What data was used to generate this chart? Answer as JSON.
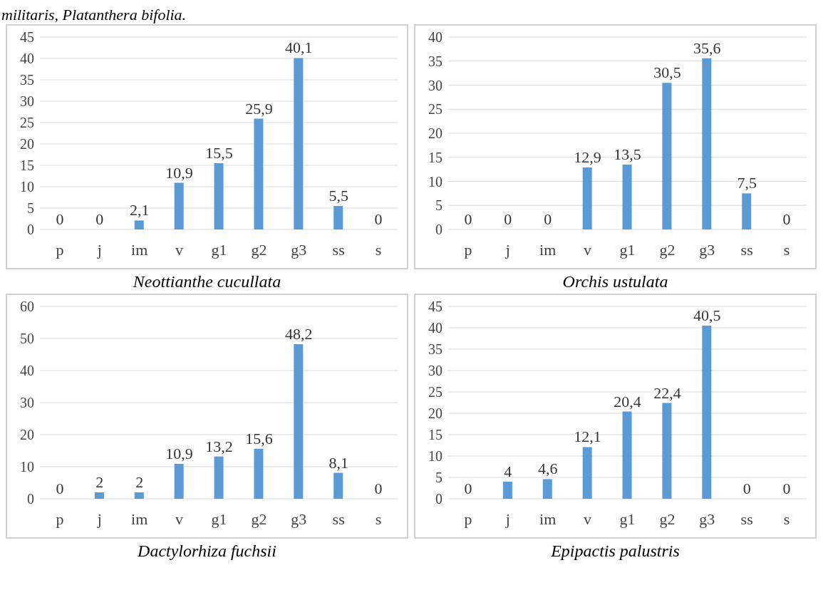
{
  "chart_data": [
    {
      "type": "bar",
      "annotations": [
        "militaris, Platanthera bifolia."
      ],
      "xlabel": "Neottianthe cucullata",
      "categories": [
        "p",
        "j",
        "im",
        "v",
        "g1",
        "g2",
        "g3",
        "ss",
        "s"
      ],
      "values": [
        0,
        0,
        2.1,
        10.9,
        15.5,
        25.9,
        40.1,
        5.5,
        0
      ],
      "value_labels": [
        "0",
        "0",
        "2,1",
        "10,9",
        "15,5",
        "25,9",
        "40,1",
        "5,5",
        "0"
      ],
      "color": "#5b9bd5",
      "ylim": [
        0,
        45
      ],
      "yticks": [
        0,
        5,
        10,
        15,
        20,
        25,
        30,
        35,
        40,
        45
      ],
      "grid": "y"
    },
    {
      "type": "bar",
      "xlabel": "Orchis ustulata",
      "categories": [
        "p",
        "j",
        "im",
        "v",
        "g1",
        "g2",
        "g3",
        "ss",
        "s"
      ],
      "values": [
        0,
        0,
        0,
        12.9,
        13.5,
        30.5,
        35.6,
        7.5,
        0
      ],
      "value_labels": [
        "0",
        "0",
        "0",
        "12,9",
        "13,5",
        "30,5",
        "35,6",
        "7,5",
        "0"
      ],
      "color": "#5b9bd5",
      "ylim": [
        0,
        40
      ],
      "yticks": [
        0,
        5,
        10,
        15,
        20,
        25,
        30,
        35,
        40
      ],
      "grid": "y"
    },
    {
      "type": "bar",
      "xlabel": "Dactylorhiza fuchsii",
      "categories": [
        "p",
        "j",
        "im",
        "v",
        "g1",
        "g2",
        "g3",
        "ss",
        "s"
      ],
      "values": [
        0,
        2,
        2,
        10.9,
        13.2,
        15.6,
        48.2,
        8.1,
        0
      ],
      "value_labels": [
        "0",
        "2",
        "2",
        "10,9",
        "13,2",
        "15,6",
        "48,2",
        "8,1",
        "0"
      ],
      "color": "#5b9bd5",
      "ylim": [
        0,
        60
      ],
      "yticks": [
        0,
        10,
        20,
        30,
        40,
        50,
        60
      ],
      "grid": "y"
    },
    {
      "type": "bar",
      "xlabel": "Epipactis palustris",
      "categories": [
        "p",
        "j",
        "im",
        "v",
        "g1",
        "g2",
        "g3",
        "ss",
        "s"
      ],
      "values": [
        0,
        4,
        4.6,
        12.1,
        20.4,
        22.4,
        40.5,
        0,
        0
      ],
      "value_labels": [
        "0",
        "4",
        "4,6",
        "12,1",
        "20,4",
        "22,4",
        "40,5",
        "0",
        "0"
      ],
      "color": "#5b9bd5",
      "ylim": [
        0,
        45
      ],
      "yticks": [
        0,
        5,
        10,
        15,
        20,
        25,
        30,
        35,
        40,
        45
      ],
      "grid": "y"
    }
  ]
}
